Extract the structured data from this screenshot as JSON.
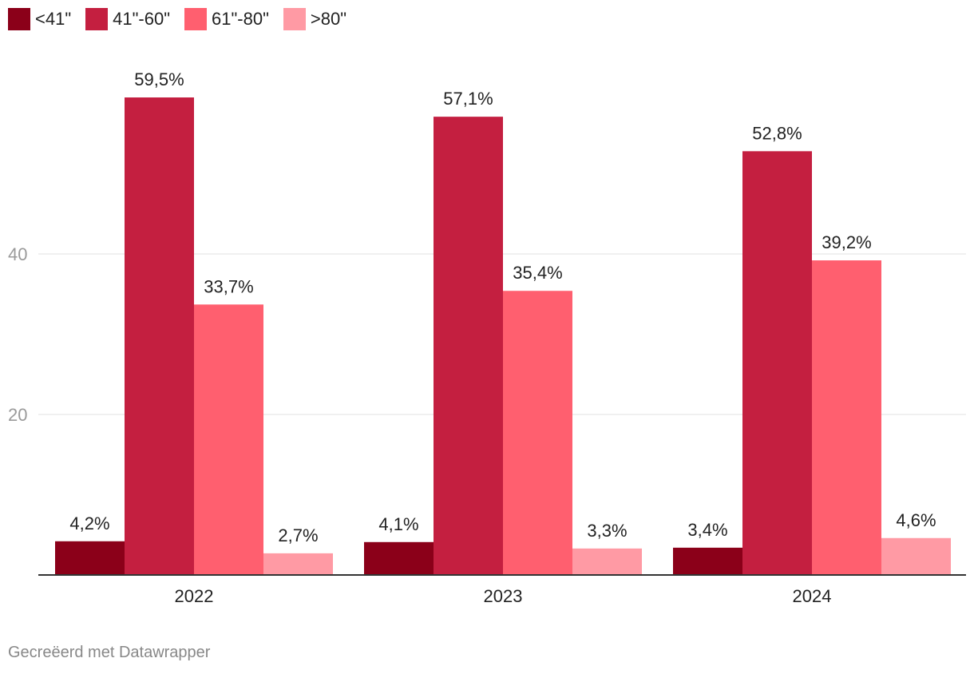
{
  "chart_data": {
    "type": "bar",
    "categories": [
      "2022",
      "2023",
      "2024"
    ],
    "series": [
      {
        "name": "<41\"",
        "color": "#8b0019",
        "values": [
          4.2,
          4.1,
          3.4
        ],
        "labels": [
          "4,2%",
          "4,1%",
          "3,4%"
        ]
      },
      {
        "name": "41\"-60\"",
        "color": "#c41f40",
        "values": [
          59.5,
          57.1,
          52.8
        ],
        "labels": [
          "59,5%",
          "57,1%",
          "52,8%"
        ]
      },
      {
        "name": "61\"-80\"",
        "color": "#ff5f6f",
        "values": [
          33.7,
          35.4,
          39.2
        ],
        "labels": [
          "33,7%",
          "35,4%",
          "39,2%"
        ]
      },
      {
        "name": ">80\"",
        "color": "#ff9aa4",
        "values": [
          2.7,
          3.3,
          4.6
        ],
        "labels": [
          "2,7%",
          "3,3%",
          "4,6%"
        ]
      }
    ],
    "yticks": [
      20,
      40
    ],
    "ytick_labels": [
      "20",
      "40"
    ],
    "ylim": [
      0,
      70
    ],
    "grid": true,
    "legend": "top-left",
    "xlabel": "",
    "ylabel": ""
  },
  "footer": {
    "credit": "Gecreëerd met Datawrapper"
  }
}
